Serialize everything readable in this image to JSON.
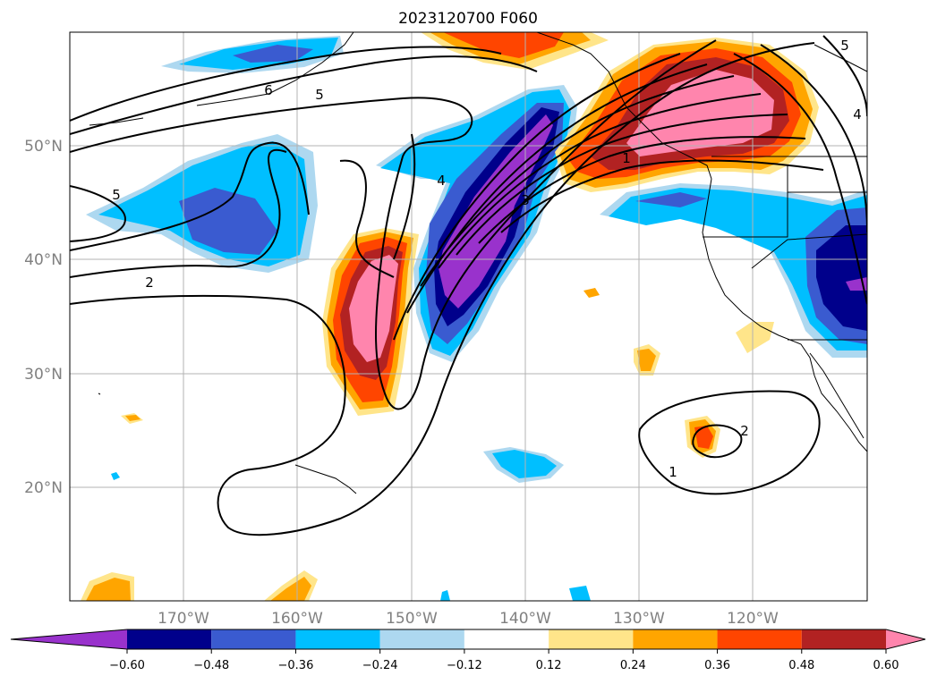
{
  "title": "2023120700 F060",
  "lat_labels": [
    "50°N",
    "40°N",
    "30°N",
    "20°N"
  ],
  "lon_labels": [
    "170°W",
    "160°W",
    "150°W",
    "140°W",
    "130°W",
    "120°W"
  ],
  "colorbar": {
    "tick_labels": [
      "−0.60",
      "−0.48",
      "−0.36",
      "−0.24",
      "−0.12",
      "0.12",
      "0.24",
      "0.36",
      "0.48",
      "0.60"
    ],
    "colors": [
      "#9932cc",
      "#00008b",
      "#3a5bd0",
      "#00bfff",
      "#add8f0",
      "#ffffff",
      "#ffe58a",
      "#ffa500",
      "#ff4500",
      "#b22222",
      "#ff85ad"
    ]
  },
  "contour_labels": [
    "6",
    "5",
    "5",
    "4",
    "3",
    "2",
    "1",
    "2",
    "1",
    "4",
    "5"
  ]
}
